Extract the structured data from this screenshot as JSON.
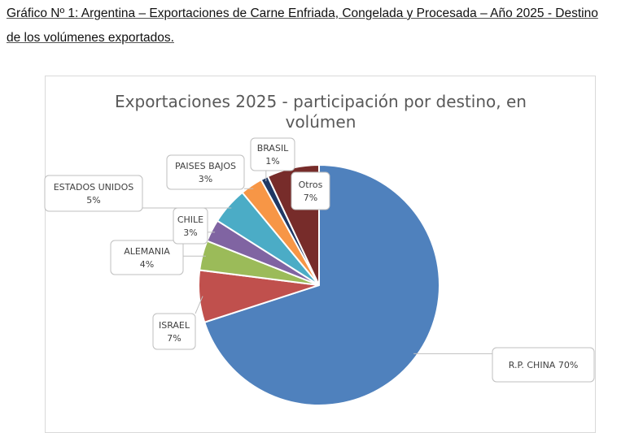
{
  "caption": {
    "line1": "Gráfico Nº 1: Argentina – Exportaciones de Carne Enfriada, Congelada y Procesada – Año 2025 - Destino",
    "line2": "de los volúmenes exportados."
  },
  "chart_data": {
    "type": "pie",
    "title_lines": [
      "Exportaciones 2025 - participación por destino, en",
      "volúmen"
    ],
    "unit": "%",
    "start": "top, clockwise",
    "slices": [
      {
        "label": "R.P. CHINA",
        "value": 70,
        "display": "R.P. CHINA 70%",
        "color": "#4f81bd"
      },
      {
        "label": "ISRAEL",
        "value": 7,
        "display": "7%",
        "color": "#c0504d"
      },
      {
        "label": "ALEMANIA",
        "value": 4,
        "display": "4%",
        "color": "#9bbb59"
      },
      {
        "label": "CHILE",
        "value": 3,
        "display": "3%",
        "color": "#8064a2"
      },
      {
        "label": "ESTADOS UNIDOS",
        "value": 5,
        "display": "5%",
        "color": "#4bacc6"
      },
      {
        "label": "PAISES BAJOS",
        "value": 3,
        "display": "3%",
        "color": "#f79646"
      },
      {
        "label": "BRASIL",
        "value": 1,
        "display": "1%",
        "color": "#1f3864"
      },
      {
        "label": "Otros",
        "value": 7,
        "display": "7%",
        "color": "#772c2a"
      }
    ]
  }
}
